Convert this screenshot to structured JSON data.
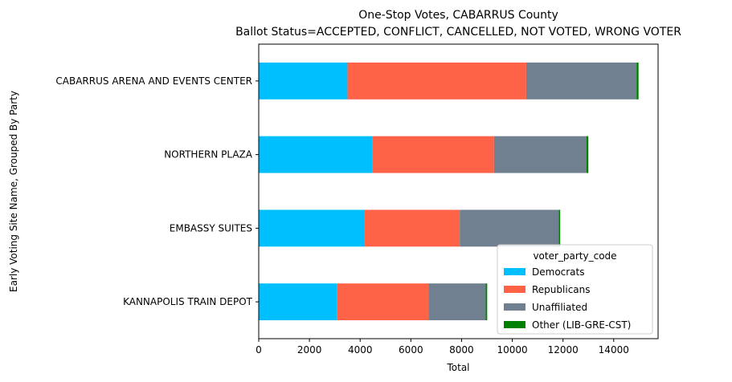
{
  "chart_data": {
    "type": "bar",
    "orientation": "horizontal",
    "stacked": true,
    "title_line1": "One-Stop Votes, CABARRUS County",
    "title_line2": "Ballot Status=ACCEPTED, CONFLICT, CANCELLED, NOT VOTED, WRONG VOTER",
    "xlabel": "Total",
    "ylabel": "Early Voting Site Name, Grouped By Party",
    "xlim": [
      0,
      15750
    ],
    "xticks": [
      "0",
      "2000",
      "4000",
      "6000",
      "8000",
      "10000",
      "12000",
      "14000"
    ],
    "xtick_values": [
      0,
      2000,
      4000,
      6000,
      8000,
      10000,
      12000,
      14000
    ],
    "categories": [
      "CABARRUS ARENA AND EVENTS CENTER",
      "NORTHERN PLAZA",
      "EMBASSY SUITES",
      "KANNAPOLIS TRAIN DEPOT"
    ],
    "series": [
      {
        "name": "Democrats",
        "color": "#00bfff",
        "values": [
          3500,
          4480,
          4180,
          3080
        ]
      },
      {
        "name": "Republicans",
        "color": "#ff6347",
        "values": [
          7050,
          4800,
          3750,
          3620
        ]
      },
      {
        "name": "Unaffiliated",
        "color": "#708090",
        "values": [
          4350,
          3650,
          3900,
          2250
        ]
      },
      {
        "name": "Other (LIB-GRE-CST)",
        "color": "#008000",
        "values": [
          80,
          70,
          60,
          60
        ]
      }
    ],
    "legend": {
      "title": "voter_party_code",
      "placement": "lower-right"
    },
    "grid": false
  }
}
